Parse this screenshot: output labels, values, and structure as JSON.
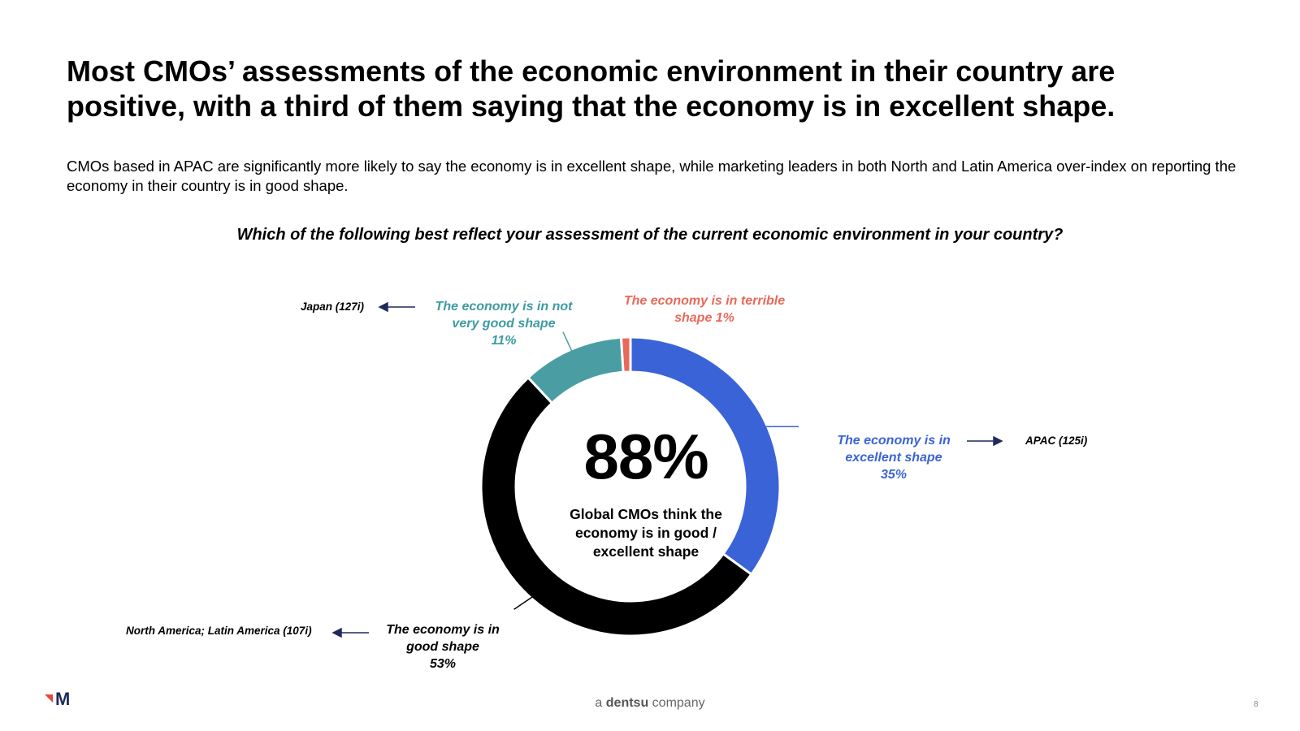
{
  "title": "Most CMOs’ assessments of the economic environment in their country are positive, with a third of them saying that the economy is in excellent shape.",
  "subtitle": "CMOs based in APAC are significantly more likely to say the economy is in excellent shape, while marketing leaders in both North and Latin America over-index on reporting the economy in their country is in good shape.",
  "question": "Which of the following best reflect your assessment of the current economic environment in your country?",
  "center": {
    "value": "88%",
    "text": "Global CMOs think the economy is in good / excellent shape"
  },
  "chart_data": {
    "type": "pie",
    "categories": [
      "The economy is in excellent shape",
      "The economy is in good shape",
      "The economy is in not very good shape",
      "The economy is in terrible shape"
    ],
    "values": [
      35,
      53,
      11,
      1
    ],
    "colors": [
      "#3b63d8",
      "#000000",
      "#4a9ea3",
      "#e8695a"
    ],
    "labels": [
      {
        "line1": "The economy is in",
        "line2": "excellent shape",
        "pct": "35%"
      },
      {
        "line1": "The economy is in",
        "line2": "good shape",
        "pct": "53%"
      },
      {
        "line1": "The economy is in not",
        "line2": "very good shape",
        "pct": "11%"
      },
      {
        "line1": "The economy is in terrible",
        "line2": "shape 1%",
        "pct": ""
      }
    ],
    "regions": {
      "excellent": "APAC (125i)",
      "good": "North America; Latin America (107i)",
      "notgood": "Japan (127i)"
    }
  },
  "footer": {
    "prefix": "a",
    "brand": "dentsu",
    "suffix": "company",
    "page": "8"
  }
}
